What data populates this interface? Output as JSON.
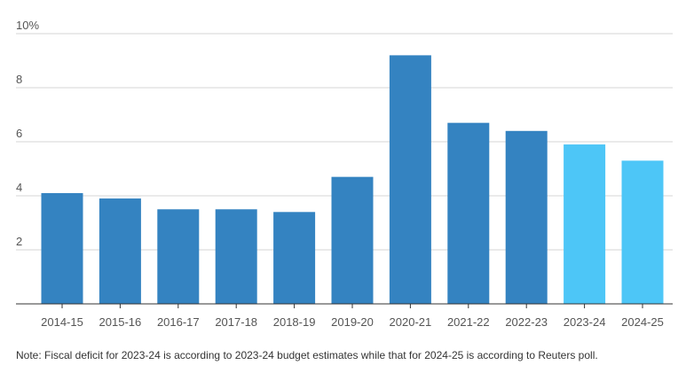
{
  "chart_data": {
    "type": "bar",
    "categories": [
      "2014-15",
      "2015-16",
      "2016-17",
      "2017-18",
      "2018-19",
      "2019-20",
      "2020-21",
      "2021-22",
      "2022-23",
      "2023-24",
      "2024-25"
    ],
    "values": [
      4.1,
      3.9,
      3.5,
      3.5,
      3.4,
      4.7,
      9.2,
      6.7,
      6.4,
      5.9,
      5.3
    ],
    "ylim": [
      0,
      10
    ],
    "yticks": [
      {
        "value": 2,
        "label": "2"
      },
      {
        "value": 4,
        "label": "4"
      },
      {
        "value": 6,
        "label": "6"
      },
      {
        "value": 8,
        "label": "8"
      },
      {
        "value": 10,
        "label": "10%"
      }
    ],
    "grid": true,
    "colors": {
      "actual": "#3483c1",
      "estimate": "#4dc6f7"
    },
    "estimate_categories": [
      "2023-24",
      "2024-25"
    ]
  },
  "note": "Note: Fiscal deficit for 2023-24 is according to 2023-24 budget estimates while that for 2024-25 is according to Reuters poll."
}
